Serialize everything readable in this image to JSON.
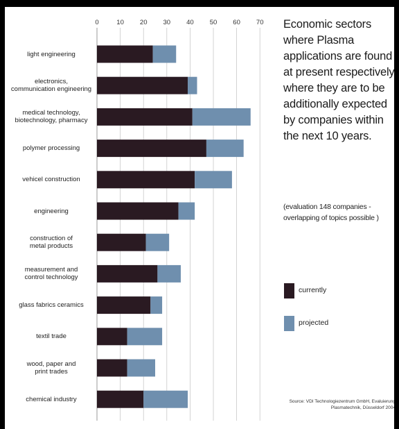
{
  "chart_data": {
    "type": "bar",
    "orientation": "horizontal",
    "stacked": true,
    "title": "Economic sectors where Plasma applications are found at present respectively where they are to be additionally expected by companies within the next 10 years.",
    "subtitle": "(evaluation 148 companies - overlapping of topics possible )",
    "x_ticks": [
      "0",
      "10",
      "20",
      "30",
      "40",
      "50",
      "60",
      "70"
    ],
    "xlim": [
      0,
      70
    ],
    "grid": true,
    "legend_position": "right",
    "categories": [
      "light engineering",
      "electronics,\ncommunication engineering",
      "medical technology,\nbiotechnology, pharmacy",
      "polymer processing",
      "vehicel construction",
      "engineering",
      "construction  of\nmetal products",
      "measurement and\ncontrol technology",
      "glass fabrics ceramics",
      "textil trade",
      "wood, paper and\nprint trades",
      "chemical industry"
    ],
    "series": [
      {
        "name": "currently",
        "color": "#2a1a22",
        "values": [
          24,
          39,
          41,
          47,
          42,
          35,
          21,
          26,
          23,
          13,
          13,
          20
        ]
      },
      {
        "name": "projected",
        "color": "#6f8fae",
        "values": [
          10,
          4,
          25,
          16,
          16,
          7,
          10,
          10,
          5,
          15,
          12,
          19
        ]
      }
    ],
    "source": "Source:  VDI Technologiezentrum GmbH, Evaluierung Plasmatechnik, Düsseldorf 2004"
  }
}
